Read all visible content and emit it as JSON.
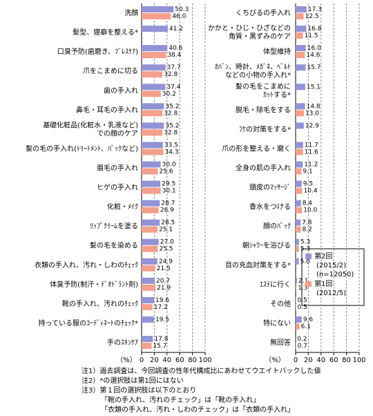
{
  "chart_data": [
    {
      "type": "bar",
      "orientation": "horizontal",
      "x_label": "（%）",
      "categories": [
        "洗顔",
        "髪型、寝癖を整える*",
        "口臭予防(歯磨き、ﾌﾞﾚｽｹｱ)",
        "爪をこまめに切る",
        "歯の手入れ",
        "鼻毛・耳毛の手入れ",
        [
          "基礎化粧品(化粧水・乳液など)",
          "での顔のケア"
        ],
        "髪の毛の手入れ(ﾄﾘｰﾄﾒﾝﾄ、ﾊﾟｯｸなど)",
        "眉毛の手入れ",
        "ヒゲの手入れ",
        "化粧・ﾒｲｸ",
        "ﾘｯﾌﾟｸﾘｰﾑを塗る",
        "髪の毛を染める",
        "衣類の手入れ、汚れ・しわのﾁｪｯｸ",
        "体臭予防(制汗・ﾃﾞｵﾄﾞﾗﾝﾄ剤)",
        "靴の手入れ、汚れのﾁｪｯｸ",
        "持っている服のｺｰﾃﾞｨﾈｰﾄのﾁｪｯｸ*",
        "手のｽｷﾝｹｱ"
      ],
      "series": [
        {
          "name": "第2回",
          "color": "#9293d6",
          "values": [
            50.3,
            41.2,
            40.6,
            37.7,
            37.4,
            35.2,
            35.2,
            33.5,
            30.0,
            29.5,
            28.7,
            28.5,
            27.0,
            24.9,
            20.7,
            19.6,
            19.5,
            17.8
          ],
          "value_labels": [
            "50.3",
            "41.2",
            "40.6",
            "37.7",
            "37.4",
            "35.2",
            "35.2",
            "33.5",
            "30.0",
            "29.5",
            "28.7",
            "28.5",
            "27.0",
            "24.9",
            "20.7",
            "19.6",
            "19.5",
            "17.8"
          ]
        },
        {
          "name": "第1回",
          "color": "#f3a08c",
          "values": [
            46.0,
            null,
            38.4,
            32.8,
            30.2,
            32.8,
            32.8,
            34.3,
            25.6,
            30.1,
            26.9,
            25.1,
            25.5,
            21.5,
            21.9,
            17.2,
            null,
            15.7
          ],
          "value_labels": [
            "46.0",
            null,
            "38.4",
            "32.8",
            "30.2",
            "32.8",
            "32.8",
            "34.3",
            "25.6",
            "30.1",
            "26.9",
            "25.1",
            "25.5",
            "21.5",
            "21.9",
            "17.2",
            null,
            "15.7"
          ]
        }
      ],
      "xlim": [
        0,
        100
      ],
      "xticks": [
        0,
        20,
        40,
        60,
        80,
        100
      ],
      "grid": true
    },
    {
      "type": "bar",
      "orientation": "horizontal",
      "x_label": "（%）",
      "categories": [
        "くちびるの手入れ",
        [
          "かかと・ひじ・ひざなどの",
          "角質・黒ずみのケア"
        ],
        "体型維持",
        [
          "ｶﾊﾞﾝ、時計、ﾒｶﾞﾈ、ﾍﾞﾙﾄ",
          "などの小物の手入れ*"
        ],
        [
          "髪の毛をこまめに",
          "ｶｯﾄする*"
        ],
        "脱毛・除毛をする",
        "ﾌｹの対策をする*",
        "爪の形を整える・磨く",
        "全身の肌の手入れ",
        "頭皮のﾏｯｻｰｼﾞ",
        "香水をつける",
        "顔のﾊﾟｯｸ",
        "朝ｼｬﾜｰを浴びる",
        "目の充血対策をする*",
        "ｴｽﾃに行く",
        "その他",
        "特にない",
        "無回答"
      ],
      "series": [
        {
          "name": "第2回",
          "color": "#9293d6",
          "period": "(2015/2)",
          "sample": "(n=12050)",
          "values": [
            17.3,
            16.8,
            16.0,
            15.7,
            15.1,
            14.8,
            12.9,
            11.7,
            11.2,
            9.5,
            8.4,
            7.8,
            5.3,
            5.0,
            2.1,
            0.5,
            9.6,
            0.2
          ],
          "value_labels": [
            "17.3",
            "16.8",
            "16.0",
            "15.7",
            "15.1",
            "14.8",
            "12.9",
            "11.7",
            "11.2",
            "9.5",
            "8.4",
            "7.8",
            "5.3",
            "5.0",
            "2.1",
            "0.5",
            "9.6",
            "0.2"
          ]
        },
        {
          "name": "第1回",
          "color": "#f3a08c",
          "period": "(2012/5)",
          "values": [
            12.5,
            11.5,
            14.6,
            null,
            null,
            13.0,
            null,
            11.6,
            9.1,
            10.4,
            10.0,
            8.2,
            5.3,
            null,
            1.3,
            0.5,
            6.1,
            0.7
          ],
          "value_labels": [
            "12.5",
            "11.5",
            "14.6",
            null,
            null,
            "13.0",
            null,
            "11.6",
            "9.1",
            "10.4",
            "10.0",
            "8.2",
            "5.3",
            null,
            "1.3",
            "0.5",
            "6.1",
            "0.7"
          ]
        }
      ],
      "xlim": [
        0,
        100
      ],
      "xticks": [
        0,
        20,
        40,
        60,
        80,
        100
      ],
      "grid": true,
      "legend": "lower-right"
    }
  ],
  "notes": [
    "注1）過去調査は、今回調査の性年代構成比にあわせてウエイトバックした値",
    "注2）*の選択肢は第1回にはない",
    "注3）第１回の選択肢は以下のとおり",
    "「靴の手入れ、汚れのチェック」は「靴の手入れ」",
    "「衣類の手入れ、汚れ・しわのチェック」は「衣類の手入れ」"
  ]
}
